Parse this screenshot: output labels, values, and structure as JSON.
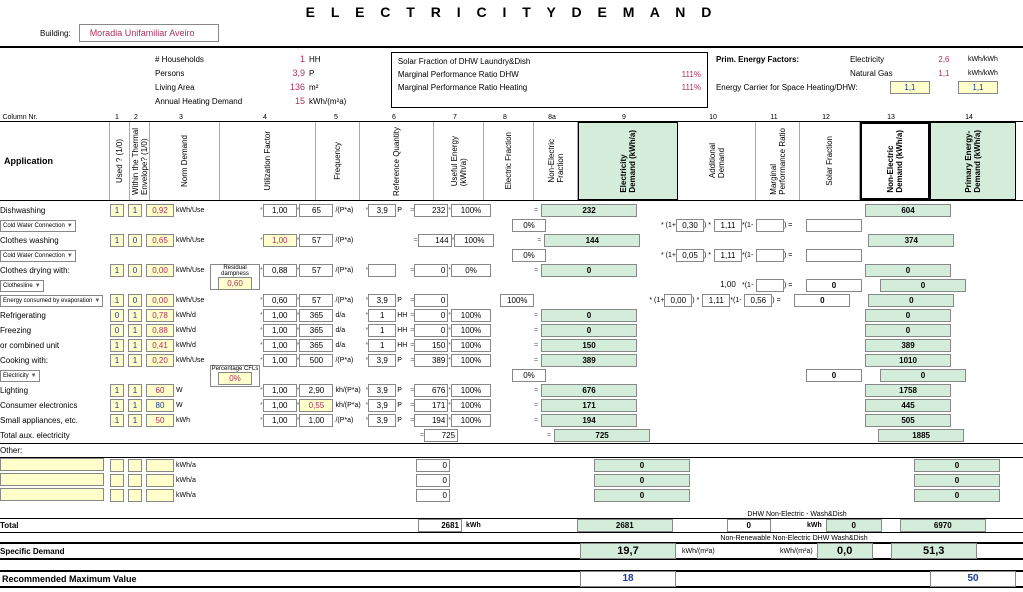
{
  "title": "E L E C T R I C I T Y    D E M A N D",
  "building_label": "Building:",
  "building_name": "Moradia Unifamiliar Aveiro",
  "hh": {
    "households": {
      "label": "# Households",
      "value": "1",
      "unit": "HH"
    },
    "persons": {
      "label": "Persons",
      "value": "3,9",
      "unit": "P"
    },
    "living_area": {
      "label": "Living Area",
      "value": "136",
      "unit": "m²"
    },
    "ahd": {
      "label": "Annual Heating Demand",
      "value": "15",
      "unit": "kWh/(m²a)"
    }
  },
  "mid": {
    "r1": "Solar Fraction of DHW Laundry&Dish",
    "r2": {
      "label": "Marginal Performance Ratio DHW",
      "value": "111%"
    },
    "r3": {
      "label": "Marginal Performance Ratio Heating",
      "value": "111%"
    }
  },
  "pef": {
    "title": "Prim. Energy Factors:",
    "elec": {
      "label": "Electricity",
      "value": "2,6",
      "unit": "kWh/kWh"
    },
    "gas": {
      "label": "Natural Gas",
      "value": "1,1",
      "unit": "kWh/kWh"
    },
    "carrier": "Energy Carrier for Space Heating/DHW:",
    "y1": "1,1",
    "y2": "1,1"
  },
  "col_label": "Column Nr.",
  "cols": [
    "1",
    "2",
    "3",
    "4",
    "5",
    "6",
    "7",
    "8",
    "8a",
    "9",
    "10",
    "11",
    "12",
    "13",
    "14"
  ],
  "h": {
    "app": "Application",
    "used": "Used ? (1/0)",
    "env": "Within the Thermal\nEnvelope? (1/0)",
    "norm": "Norm Demand",
    "util": "Utilization Factor",
    "freq": "Frequency",
    "refq": "Reference Quantity",
    "ue": "Useful Energy\n(kWh/a)",
    "ef": "Electric Fraction",
    "nef": "Non-Electric\nFraction",
    "ed": "Electricity\nDemand (kWh/a)",
    "ad": "Additional\nDemand",
    "mpr": "Marginal\nPerformance Ratio",
    "sf": "Solar Fraction",
    "ned": "Non-Electric\nDemand (kWh/a)",
    "ped": "Primary Energy-\nDemand (kWh/a)"
  },
  "mini": {
    "residual": "Residual\ndampness",
    "residual_val": "0,60",
    "cfl": "Percentage CFLs",
    "cfl_val": "0%"
  },
  "rows": [
    {
      "app": "Dishwashing",
      "sub": null,
      "u": "1",
      "e": "1",
      "n": "0,92",
      "nu": "kWh/Use",
      "uf": "1,00",
      "f": "65",
      "fu": "/(P*a)",
      "rq": "3,9",
      "rqu": "P",
      "ue": "232",
      "ef": "100%",
      "nef": null,
      "ed": "232",
      "ped": "604"
    },
    {
      "app": null,
      "sub": "Cold Water Connection",
      "nef": "0%",
      "ad": "0,30",
      "mpr": "1,11"
    },
    {
      "app": "Clothes washing",
      "u": "1",
      "e": "0",
      "n": "0,65",
      "nu": "kWh/Use",
      "uf": "1,00",
      "uf_y": true,
      "f": "57",
      "fu": "/(P*a)",
      "ue": "144",
      "ef": "100%",
      "ed": "144",
      "ped": "374"
    },
    {
      "app": null,
      "sub": "Cold Water Connection",
      "nef": "0%",
      "ad": "0,05",
      "mpr": "1,11"
    },
    {
      "app": "Clothes drying with:",
      "u": "1",
      "e": "0",
      "n": "0,00",
      "nu": "kWh/Use",
      "res": true,
      "uf": "0,88",
      "f": "57",
      "fu": "/(P*a)",
      "rq": "",
      "rqu": "",
      "ue": "0",
      "ef": "0%",
      "ed": "0",
      "ped": "0"
    },
    {
      "app": null,
      "sub": "Clothesline",
      "mpr": "1,00",
      "ned": "0",
      "mpr_noborder": true,
      "ped": "0"
    },
    {
      "app": null,
      "sub": "Energy consumed by evaporation",
      "u": "1",
      "e": "0",
      "n": "0,00",
      "nu": "kWh/Use",
      "uf": "0,60",
      "f": "57",
      "fu": "/(P*a)",
      "rq": "3,9",
      "rqu": "P",
      "ue": "0",
      "nef": "100%",
      "ad": "0,00",
      "mpr": "1,11",
      "mpr_r": "0,56",
      "ned": "0",
      "ped": "0"
    },
    {
      "app": "Refrigerating",
      "u": "0",
      "e": "1",
      "n": "0,78",
      "nu": "kWh/d",
      "uf": "1,00",
      "f": "365",
      "fu": "d/a",
      "rq": "1",
      "rqu": "HH",
      "ue": "0",
      "ef": "100%",
      "ed": "0",
      "ped": "0"
    },
    {
      "app": "Freezing",
      "u": "0",
      "e": "1",
      "n": "0,88",
      "nu": "kWh/d",
      "uf": "1,00",
      "f": "365",
      "fu": "d/a",
      "rq": "1",
      "rqu": "HH",
      "ue": "0",
      "ef": "100%",
      "ed": "0",
      "ped": "0"
    },
    {
      "app": "or combined unit",
      "u": "1",
      "e": "1",
      "n": "0,41",
      "nu": "kWh/d",
      "uf": "1,00",
      "f": "365",
      "fu": "d/a",
      "rq": "1",
      "rqu": "HH",
      "ue": "150",
      "ef": "100%",
      "ed": "150",
      "ped": "389"
    },
    {
      "app": "Cooking with:",
      "u": "1",
      "e": "1",
      "n": "0,20",
      "nu": "kWh/Use",
      "uf": "1,00",
      "f": "500",
      "fu": "/(P*a)",
      "rq": "3,9",
      "rqu": "P",
      "ue": "389",
      "ef": "100%",
      "ed": "389",
      "ped": "1010"
    },
    {
      "app": null,
      "sub": "Electricity",
      "cfl": true,
      "nef": "0%",
      "ned": "0",
      "ped": "0"
    },
    {
      "app": "Lighting",
      "u": "1",
      "e": "1",
      "n": "60",
      "nu": "W",
      "uf": "1,00",
      "f": "2,90",
      "fu": "kh/(P*a)",
      "rq": "3,9",
      "rqu": "P",
      "ue": "676",
      "ef": "100%",
      "ed": "676",
      "ped": "1758"
    },
    {
      "app": "Consumer electronics",
      "u": "1",
      "e": "1",
      "n": "80",
      "nu": "W",
      "n_blue": true,
      "uf": "1,00",
      "f": "0,55",
      "f_y": true,
      "fu": "kh/(P*a)",
      "rq": "3,9",
      "rqu": "P",
      "ue": "171",
      "ef": "100%",
      "ed": "171",
      "ped": "445"
    },
    {
      "app": "Small appliances, etc.",
      "u": "1",
      "e": "1",
      "n": "50",
      "nu": "kWh",
      "uf": "1,00",
      "f": "1,00",
      "fu": "/(P*a)",
      "rq": "3,9",
      "rqu": "P",
      "ue": "194",
      "ef": "100%",
      "ed": "194",
      "ped": "505"
    },
    {
      "app": "Total aux. electricity",
      "ue": "725",
      "ed": "725",
      "ped": "1885",
      "noboxes": true
    }
  ],
  "other": "Other:",
  "other_rows": [
    {
      "unit": "kWh/a",
      "ue": "0",
      "ed": "0",
      "ped": "0"
    },
    {
      "unit": "kWh/a",
      "ue": "0",
      "ed": "0",
      "ped": "0"
    },
    {
      "unit": "kWh/a",
      "ue": "0",
      "ed": "0",
      "ped": "0"
    }
  ],
  "summary": {
    "dhw_label": "DHW Non-Electric - Wash&Dish",
    "dhw_val": "0",
    "total_label": "Total",
    "total_ue": "2681",
    "total_ue_unit": "kWh",
    "total_ed": "2681",
    "total_kwh": "kWh",
    "total_ned": "0",
    "total_ped": "6970",
    "nr_label": "Non-Renewable Non-Electric DHW Wash&Dish",
    "sd_label": "Specific Demand",
    "sd_ed": "19,7",
    "sd_unit": "kWh/(m²a)",
    "sd_ned": "0,0",
    "sd_ped": "51,3",
    "rmv_label": "Recommended Maximum Value",
    "rmv_ed": "18",
    "rmv_ped": "50"
  }
}
